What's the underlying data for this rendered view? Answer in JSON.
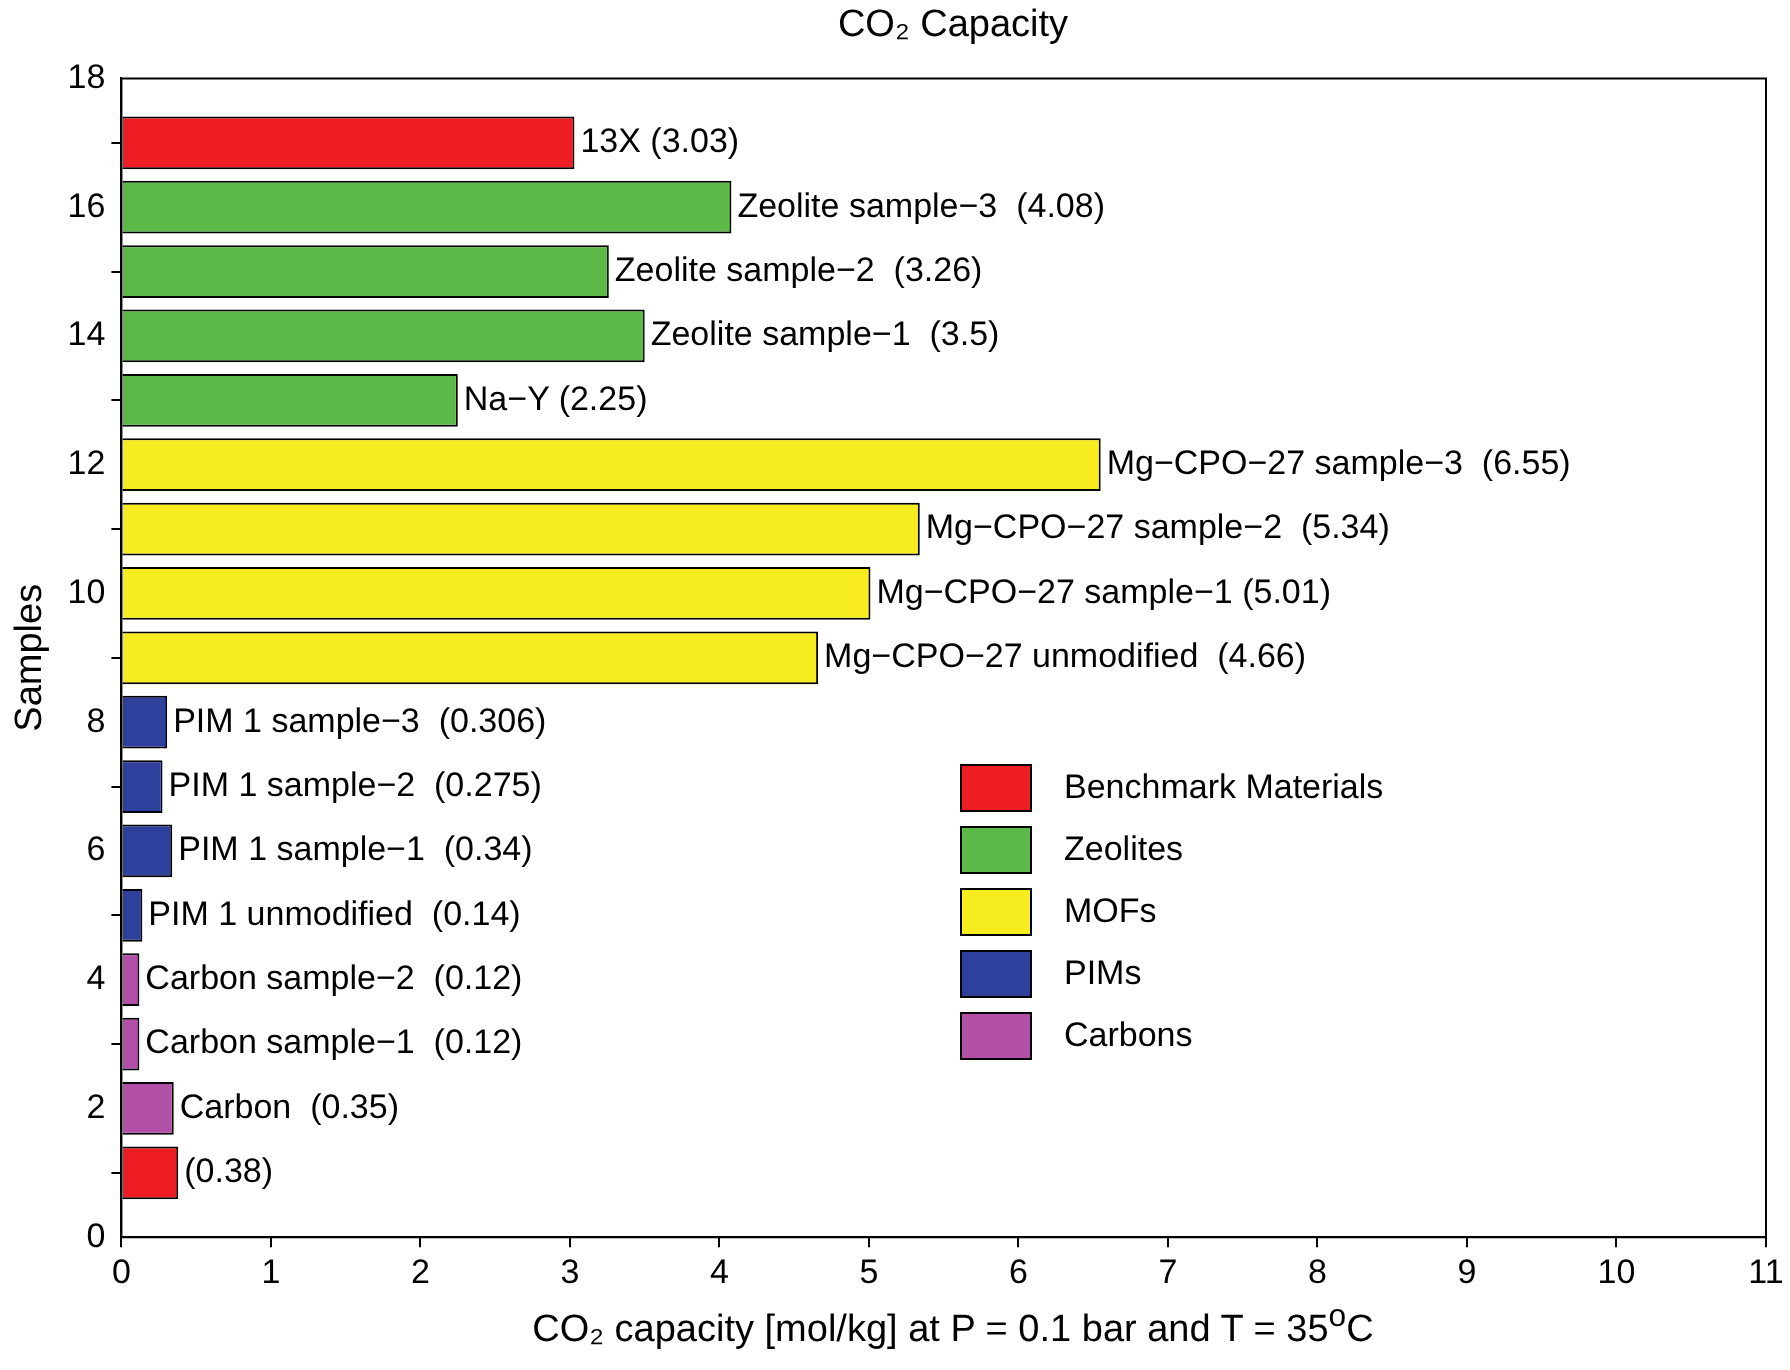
{
  "chart_data": {
    "type": "bar",
    "orientation": "horizontal",
    "title": "CO₂ Capacity",
    "xlabel": "CO₂ capacity [mol/kg] at P = 0.1 bar and T = 35$^{o}$C",
    "ylabel": "Samples",
    "xlim": [
      0,
      11
    ],
    "xticks": [
      0,
      1,
      2,
      3,
      4,
      5,
      6,
      7,
      8,
      9,
      10,
      11
    ],
    "ylim": [
      0,
      18
    ],
    "yticks": [
      0,
      2,
      4,
      6,
      8,
      10,
      12,
      14,
      16,
      18
    ],
    "grid": false,
    "legend": "bottom right",
    "series": [
      {
        "name": "Benchmark Materials",
        "color": "#ee1d23",
        "x": [
          1,
          17
        ],
        "values": [
          0.38,
          3.03
        ],
        "value_labels": [
          "(0.38)",
          "13X (3.03)"
        ]
      },
      {
        "name": "Zeolites",
        "color": "#5cb947",
        "x": [
          13,
          14,
          15,
          16
        ],
        "values": [
          2.25,
          3.5,
          3.26,
          4.08
        ],
        "value_labels": [
          "Na−Y (2.25)",
          "Zeolite sample−1  (3.5)",
          "Zeolite sample−2  (3.26)",
          "Zeolite sample−3  (4.08)"
        ]
      },
      {
        "name": "MOFs",
        "color": "#f6ec1f",
        "x": [
          9,
          10,
          11,
          12
        ],
        "values": [
          4.66,
          5.01,
          5.34,
          6.55
        ],
        "value_labels": [
          "Mg−CPO−27 unmodified  (4.66)",
          "Mg−CPO−27 sample−1 (5.01)",
          "Mg−CPO−27 sample−2  (5.34)",
          "Mg−CPO−27 sample−3  (6.55)"
        ]
      },
      {
        "name": "PIMs",
        "color": "#2e3f9c",
        "x": [
          5,
          6,
          7,
          8
        ],
        "values": [
          0.14,
          0.34,
          0.275,
          0.306
        ],
        "value_labels": [
          "PIM 1 unmodified  (0.14)",
          "PIM 1 sample−1  (0.34)",
          "PIM 1 sample−2  (0.275)",
          "PIM 1 sample−3  (0.306)"
        ]
      },
      {
        "name": "Carbons",
        "color": "#b24fa6",
        "x": [
          2,
          3,
          4
        ],
        "values": [
          0.35,
          0.12,
          0.12
        ],
        "value_labels": [
          "Carbon  (0.35)",
          "Carbon sample−1  (0.12)",
          "Carbon sample−2  (0.12)"
        ]
      }
    ]
  }
}
